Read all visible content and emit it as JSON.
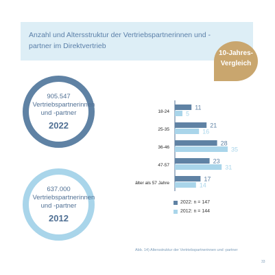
{
  "header": {
    "title": "Anzahl und Altersstruktur der Vertriebspartnerinnen und -partner im Direktvertrieb"
  },
  "badge": {
    "line1": "10-Jahres-",
    "line2": "Vergleich"
  },
  "ring_2022": {
    "number": "905.547",
    "label": "Vertriebspartnerinnen und -partner",
    "year": "2022"
  },
  "ring_2012": {
    "number": "637.000",
    "label": "Vertriebspartnerinnen und -partner",
    "year": "2012"
  },
  "chart_data": {
    "type": "bar",
    "orientation": "horizontal",
    "categories": [
      "18-24",
      "25-35",
      "36-46",
      "47-57",
      "älter als 57 Jahre"
    ],
    "series": [
      {
        "name": "2022: n = 147",
        "values": [
          11,
          21,
          28,
          23,
          17
        ],
        "color": "#5f82a4"
      },
      {
        "name": "2012: n = 144",
        "values": [
          5,
          16,
          35,
          31,
          14
        ],
        "color": "#a9d5ea"
      }
    ],
    "xlim": [
      0,
      40
    ],
    "grid": false,
    "legend_position": "bottom"
  },
  "legend": [
    {
      "label": "2022:  n = 147",
      "color": "#5f82a4"
    },
    {
      "label": "2012:  n = 144",
      "color": "#a9d5ea"
    }
  ],
  "caption": "Abb. 14) Altersstruktur der Vertriebspartnerinnen und -partner",
  "page_number": "33"
}
